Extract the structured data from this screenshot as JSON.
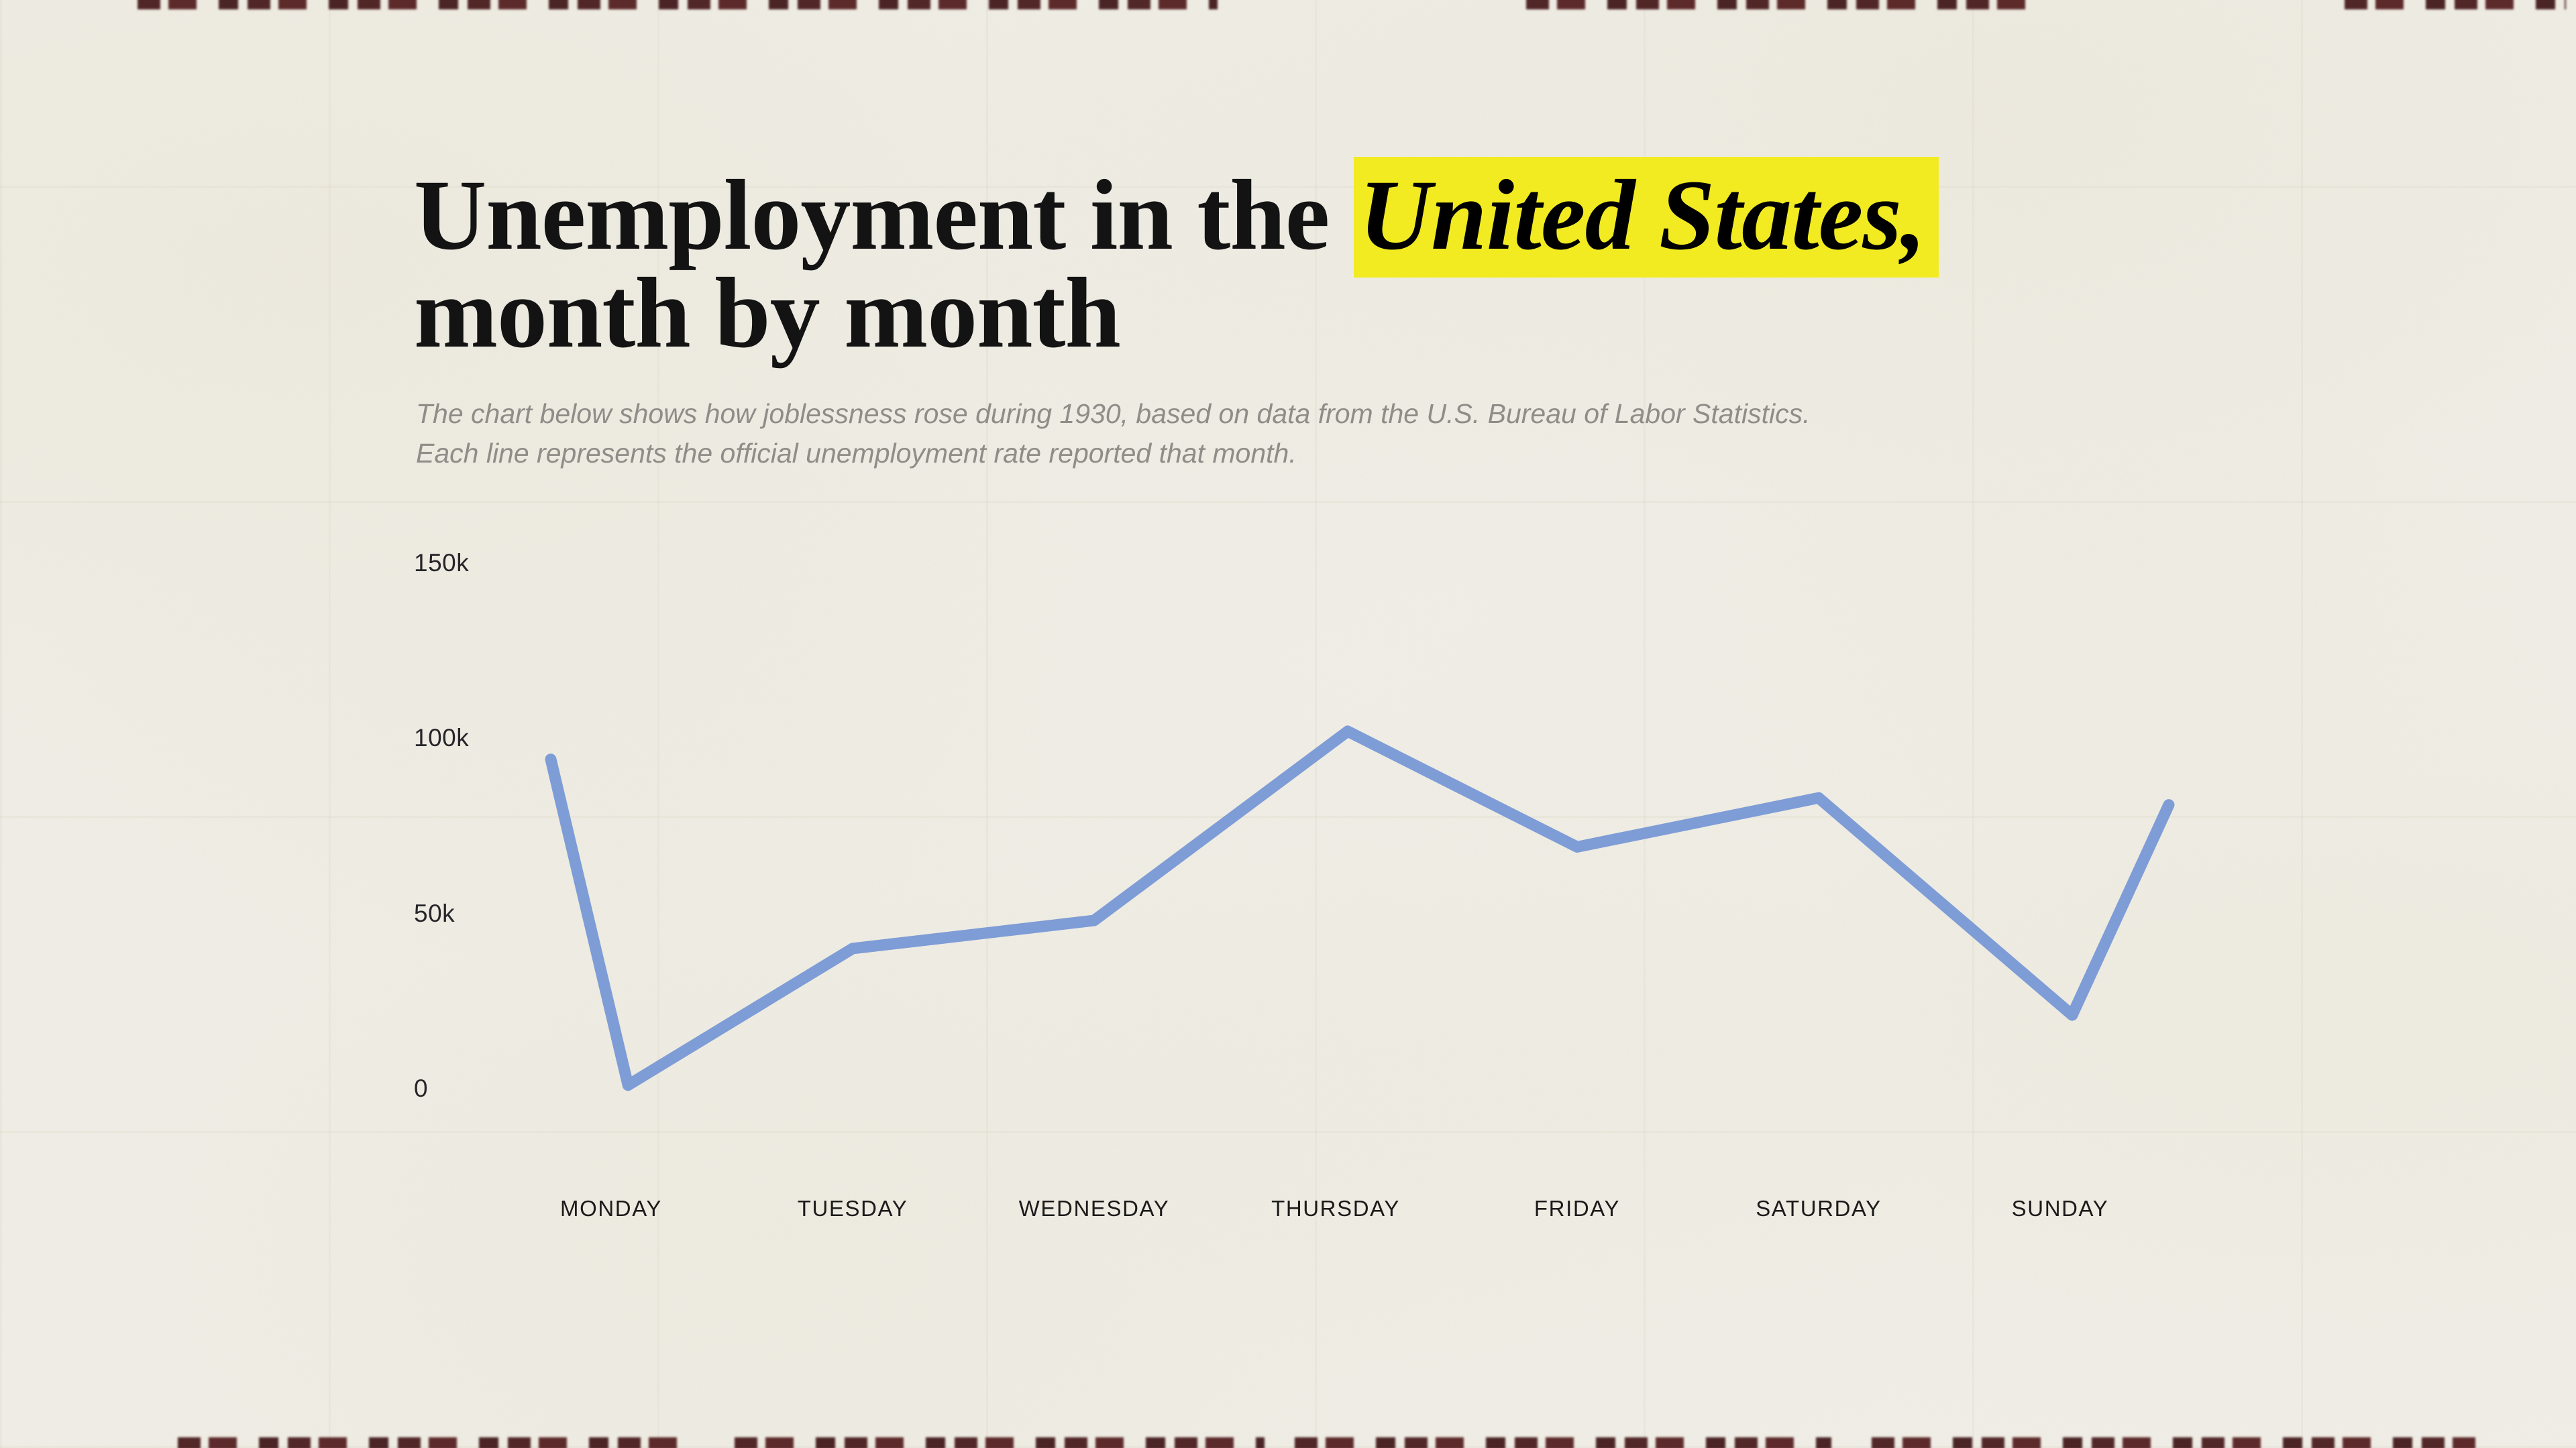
{
  "page": {
    "background_color": "#f1efe8"
  },
  "header": {
    "title_prefix": "Unemployment in the ",
    "title_highlight": "United States,",
    "title_suffix": "month by month",
    "highlight_color": "#f2eb21",
    "subtitle_line1": "The chart below shows how joblessness rose during 1930, based on data from the U.S. Bureau of Labor Statistics.",
    "subtitle_line2": "Each line represents the official unemployment rate reported that month."
  },
  "chart_data": {
    "type": "line",
    "title": "Unemployment in the United States, month by month",
    "categories": [
      "MONDAY",
      "TUESDAY",
      "WEDNESDAY",
      "THURSDAY",
      "FRIDAY",
      "SATURDAY",
      "SUNDAY"
    ],
    "y_ticks": [
      {
        "label": "0",
        "value": 0
      },
      {
        "label": "50k",
        "value": 50000
      },
      {
        "label": "100k",
        "value": 100000
      },
      {
        "label": "150k",
        "value": 150000
      }
    ],
    "ylim": [
      0,
      150000
    ],
    "grid": false,
    "legend": "none",
    "line_color": "#7e9cd6",
    "line_width": 17,
    "points": [
      {
        "x": 0.75,
        "value": 94000
      },
      {
        "x": 1.07,
        "value": 1000
      },
      {
        "x": 2.0,
        "value": 40000
      },
      {
        "x": 3.0,
        "value": 48000
      },
      {
        "x": 4.05,
        "value": 102000
      },
      {
        "x": 5.0,
        "value": 69000
      },
      {
        "x": 6.0,
        "value": 83000
      },
      {
        "x": 7.05,
        "value": 21000
      },
      {
        "x": 7.45,
        "value": 81000
      }
    ]
  }
}
